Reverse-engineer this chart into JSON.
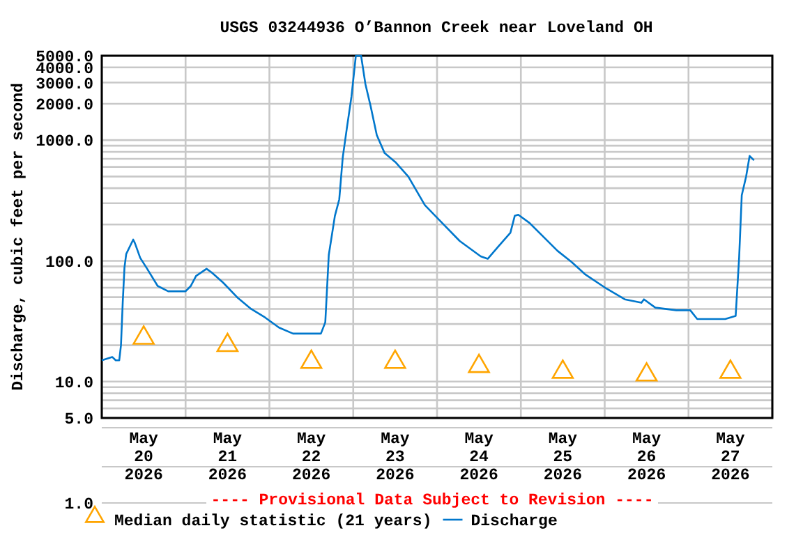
{
  "chart_data": {
    "type": "line",
    "title": "USGS 03244936 O’Bannon Creek near Loveland OH",
    "ylabel": "Discharge, cubic feet per second",
    "log": true,
    "grid": true,
    "legend": "bottom",
    "xlim": [
      "2026-05-20T00:00",
      "2026-05-28T00:00"
    ],
    "xticks": [
      {
        "value": "2026-05-20T00:00",
        "label": null
      },
      {
        "value": "2026-05-21T00:00",
        "label": null
      },
      {
        "value": "2026-05-22T00:00",
        "label": null
      },
      {
        "value": "2026-05-23T00:00",
        "label": null
      },
      {
        "value": "2026-05-24T00:00",
        "label": null
      },
      {
        "value": "2026-05-25T00:00",
        "label": null
      },
      {
        "value": "2026-05-26T00:00",
        "label": null
      },
      {
        "value": "2026-05-27T00:00",
        "label": null
      },
      {
        "value": "2026-05-28T00:00",
        "label": null
      },
      {
        "value": "2026-05-20T12:00",
        "label": "May 20 2026"
      },
      {
        "value": "2026-05-21T12:00",
        "label": "May 21 2026"
      },
      {
        "value": "2026-05-22T12:00",
        "label": "May 22 2026"
      },
      {
        "value": "2026-05-23T12:00",
        "label": "May 23 2026"
      },
      {
        "value": "2026-05-24T12:00",
        "label": "May 24 2026"
      },
      {
        "value": "2026-05-25T12:00",
        "label": "May 25 2026"
      },
      {
        "value": "2026-05-26T12:00",
        "label": "May 26 2026"
      },
      {
        "value": "2026-05-27T12:00",
        "label": "May 27 2026"
      }
    ],
    "ylim": [
      5,
      5000
    ],
    "yticks": [
      {
        "value": 5,
        "label": "5.0"
      },
      {
        "value": 6,
        "label": null
      },
      {
        "value": 7,
        "label": null
      },
      {
        "value": 8,
        "label": null
      },
      {
        "value": 9,
        "label": null
      },
      {
        "value": 10,
        "label": "10.0"
      },
      {
        "value": 20,
        "label": null
      },
      {
        "value": 30,
        "label": null
      },
      {
        "value": 40,
        "label": null
      },
      {
        "value": 50,
        "label": null
      },
      {
        "value": 60,
        "label": null
      },
      {
        "value": 70,
        "label": null
      },
      {
        "value": 80,
        "label": null
      },
      {
        "value": 90,
        "label": null
      },
      {
        "value": 100,
        "label": "100.0"
      },
      {
        "value": 200,
        "label": null
      },
      {
        "value": 300,
        "label": null
      },
      {
        "value": 400,
        "label": null
      },
      {
        "value": 500,
        "label": null
      },
      {
        "value": 600,
        "label": null
      },
      {
        "value": 700,
        "label": null
      },
      {
        "value": 800,
        "label": null
      },
      {
        "value": 900,
        "label": null
      },
      {
        "value": 1000,
        "label": "1000.0"
      },
      {
        "value": 2000,
        "label": "2000.0"
      },
      {
        "value": 3000,
        "label": "3000.0"
      },
      {
        "value": 4000,
        "label": "4000.0"
      },
      {
        "value": 5000,
        "label": "5000.0"
      }
    ],
    "series": [
      {
        "name": "Median daily statistic (21 years)",
        "type": "scatter",
        "marker": "triangle",
        "color": "#ffa500",
        "x": [
          "2026-05-20T12:00",
          "2026-05-21T12:00",
          "2026-05-22T12:00",
          "2026-05-23T12:00",
          "2026-05-24T12:00",
          "2026-05-25T12:00",
          "2026-05-26T12:00",
          "2026-05-27T12:00"
        ],
        "values": [
          23,
          20,
          14.5,
          14.5,
          13.4,
          12,
          11.4,
          12
        ]
      },
      {
        "name": "Discharge",
        "color": "#0077cc",
        "x": [
          "2026-05-20T00:00",
          "2026-05-20T03:00",
          "2026-05-20T04:00",
          "2026-05-20T05:00",
          "2026-05-20T05:30",
          "2026-05-20T06:00",
          "2026-05-20T06:30",
          "2026-05-20T07:00",
          "2026-05-20T09:00",
          "2026-05-20T09:30",
          "2026-05-20T11:00",
          "2026-05-20T13:00",
          "2026-05-20T16:00",
          "2026-05-20T19:00",
          "2026-05-21T00:00",
          "2026-05-21T01:30",
          "2026-05-21T03:00",
          "2026-05-21T06:00",
          "2026-05-21T07:30",
          "2026-05-21T10:45",
          "2026-05-21T14:45",
          "2026-05-21T18:45",
          "2026-05-21T22:45",
          "2026-05-22T02:45",
          "2026-05-22T06:45",
          "2026-05-22T10:45",
          "2026-05-22T14:45",
          "2026-05-22T16:00",
          "2026-05-22T17:00",
          "2026-05-22T18:45",
          "2026-05-22T20:00",
          "2026-05-22T21:00",
          "2026-05-22T22:15",
          "2026-05-22T23:30",
          "2026-05-23T00:45",
          "2026-05-23T02:15",
          "2026-05-23T03:30",
          "2026-05-23T05:00",
          "2026-05-23T06:45",
          "2026-05-23T09:00",
          "2026-05-23T12:15",
          "2026-05-23T15:45",
          "2026-05-23T20:30",
          "2026-05-24T00:30",
          "2026-05-24T06:30",
          "2026-05-24T12:30",
          "2026-05-24T14:30",
          "2026-05-24T17:30",
          "2026-05-24T21:00",
          "2026-05-24T22:15",
          "2026-05-24T23:15",
          "2026-05-25T02:30",
          "2026-05-25T06:30",
          "2026-05-25T10:30",
          "2026-05-25T14:30",
          "2026-05-25T18:30",
          "2026-05-26T00:30",
          "2026-05-26T05:45",
          "2026-05-26T10:30",
          "2026-05-26T11:15",
          "2026-05-26T14:30",
          "2026-05-26T20:30",
          "2026-05-27T00:30",
          "2026-05-27T02:30",
          "2026-05-27T10:30",
          "2026-05-27T13:30",
          "2026-05-27T14:30",
          "2026-05-27T15:15",
          "2026-05-27T16:30",
          "2026-05-27T17:30",
          "2026-05-27T18:45"
        ],
        "values": [
          15,
          16,
          15,
          15,
          20,
          45,
          88,
          114,
          150,
          140,
          106,
          86,
          62,
          56,
          56,
          62,
          75,
          86,
          80,
          66,
          50,
          40,
          34,
          28,
          25,
          25,
          25,
          31,
          112,
          236,
          323,
          720,
          1300,
          2300,
          5000,
          5000,
          2900,
          1900,
          1100,
          780,
          650,
          500,
          290,
          220,
          146,
          109,
          104,
          131,
          171,
          236,
          241,
          206,
          158,
          121,
          98,
          77,
          59,
          48,
          45,
          48,
          41,
          39,
          39,
          33,
          33,
          35,
          107,
          350,
          500,
          740,
          680
        ]
      }
    ],
    "annotations": [
      "---- Provisional Data Subject to Revision ----",
      "1.0"
    ]
  }
}
